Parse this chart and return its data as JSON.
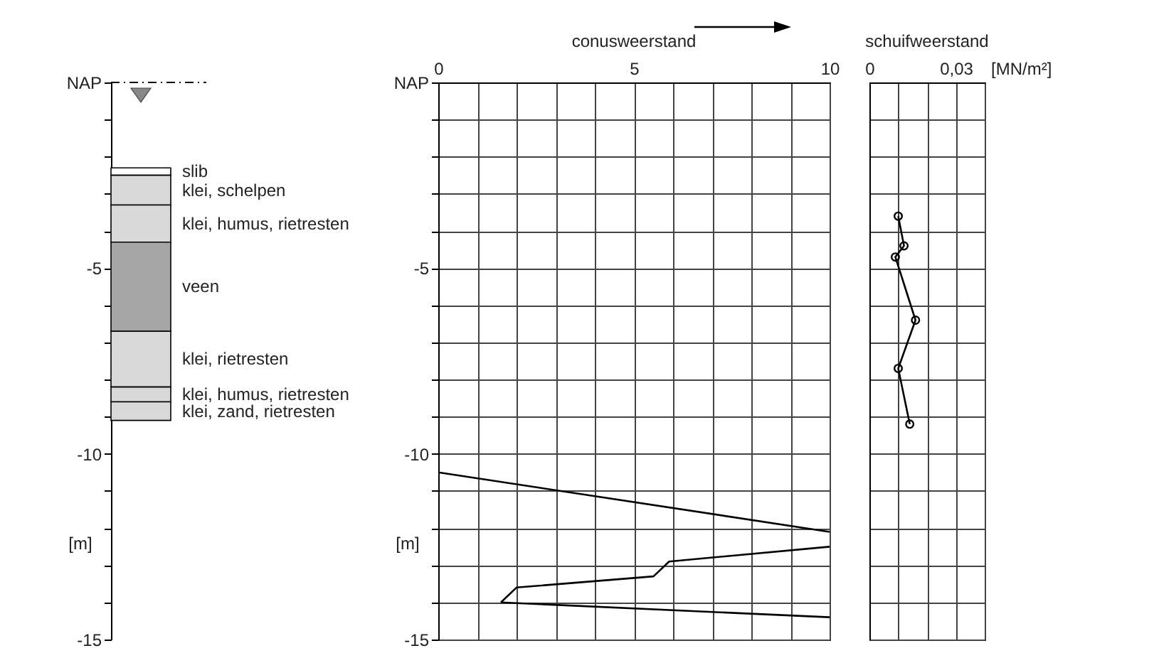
{
  "chart_data": [
    {
      "type": "bar",
      "categories": [
        null
      ],
      "ylim": [
        -15,
        0
      ],
      "ylabel": "[m]",
      "tick_labels": "y",
      "yticks": [
        {
          "value": 0,
          "label": "NAP"
        },
        {
          "value": -1,
          "label": null
        },
        {
          "value": -2,
          "label": null
        },
        {
          "value": -3,
          "label": null
        },
        {
          "value": -4,
          "label": null
        },
        -5,
        {
          "value": -6,
          "label": null
        },
        {
          "value": -7,
          "label": null
        },
        {
          "value": -8,
          "label": null
        },
        {
          "value": -9,
          "label": null
        },
        -10,
        {
          "value": -11,
          "label": null
        },
        {
          "value": -12,
          "label": null
        },
        {
          "value": -13,
          "label": null
        },
        {
          "value": -14,
          "label": null
        },
        -15
      ],
      "series": [
        {
          "name": "slib",
          "color": "#ffffff",
          "base": [
            -2.3
          ],
          "values": [
            -0.2
          ]
        },
        {
          "name": "klei, schelpen",
          "color": "#d9d9d9",
          "base": [
            -2.5
          ],
          "values": [
            -0.8
          ]
        },
        {
          "name": "klei, humus, rietresten",
          "color": "#d9d9d9",
          "base": [
            -3.3
          ],
          "values": [
            -1.0
          ]
        },
        {
          "name": "veen",
          "color": "#a6a6a6",
          "base": [
            -4.3
          ],
          "values": [
            -2.4
          ]
        },
        {
          "name": "klei, rietresten",
          "color": "#d9d9d9",
          "base": [
            -6.7
          ],
          "values": [
            -1.5
          ]
        },
        {
          "name": "klei, humus, rietresten",
          "color": "#d9d9d9",
          "base": [
            -8.2
          ],
          "values": [
            -0.4
          ]
        },
        {
          "name": "klei, zand, rietresten",
          "color": "#d9d9d9",
          "base": [
            -8.6
          ],
          "values": [
            -0.5
          ]
        }
      ],
      "ref_lines": [
        {
          "axis": "y",
          "value": 0,
          "line_style": "dashed"
        }
      ]
    },
    {
      "type": "line",
      "title": "conusweerstand",
      "ylabel": "[m]",
      "grid": true,
      "xlim": [
        0,
        10
      ],
      "xticks": [
        0,
        {
          "value": 1,
          "label": null
        },
        {
          "value": 2,
          "label": null
        },
        {
          "value": 3,
          "label": null
        },
        {
          "value": 4,
          "label": null
        },
        5,
        {
          "value": 6,
          "label": null
        },
        {
          "value": 7,
          "label": null
        },
        {
          "value": 8,
          "label": null
        },
        {
          "value": 9,
          "label": null
        },
        10
      ],
      "ylim": [
        -15,
        0
      ],
      "yticks": [
        {
          "value": 0,
          "label": "NAP"
        },
        {
          "value": -1,
          "label": null
        },
        {
          "value": -2,
          "label": null
        },
        {
          "value": -3,
          "label": null
        },
        {
          "value": -4,
          "label": null
        },
        -5,
        {
          "value": -6,
          "label": null
        },
        {
          "value": -7,
          "label": null
        },
        {
          "value": -8,
          "label": null
        },
        {
          "value": -9,
          "label": null
        },
        -10,
        {
          "value": -11,
          "label": null
        },
        {
          "value": -12,
          "label": null
        },
        {
          "value": -13,
          "label": null
        },
        {
          "value": -14,
          "label": null
        },
        -15
      ],
      "series": [
        {
          "color": "#000000",
          "x": [
            0,
            10
          ],
          "values": [
            -10.5,
            -12.1
          ]
        },
        {
          "color": "#000000",
          "x": [
            1.6,
            2,
            5.5,
            5.9,
            10
          ],
          "values": [
            -14,
            -13.6,
            -13.3,
            -12.9,
            -12.5
          ]
        },
        {
          "color": "#000000",
          "x": [
            1.6,
            10
          ],
          "values": [
            -14,
            -14.4
          ]
        }
      ]
    },
    {
      "type": "line",
      "title": "schuifweerstand",
      "xlabel": "[MN/m²]",
      "grid": true,
      "tick_labels": "x",
      "marker": "circle",
      "xlim": [
        0,
        0.04
      ],
      "xticks": [
        0,
        {
          "value": 0.01,
          "label": null
        },
        {
          "value": 0.02,
          "label": null
        },
        {
          "value": 0.03,
          "label": "0,03"
        },
        {
          "value": 0.04,
          "label": null
        }
      ],
      "ylim": [
        -15,
        0
      ],
      "yticks": [
        {
          "value": 0,
          "label": null
        },
        {
          "value": -1,
          "label": null
        },
        {
          "value": -2,
          "label": null
        },
        {
          "value": -3,
          "label": null
        },
        {
          "value": -4,
          "label": null
        },
        {
          "value": -5,
          "label": null
        },
        {
          "value": -6,
          "label": null
        },
        {
          "value": -7,
          "label": null
        },
        {
          "value": -8,
          "label": null
        },
        {
          "value": -9,
          "label": null
        },
        {
          "value": -10,
          "label": null
        },
        {
          "value": -11,
          "label": null
        },
        {
          "value": -12,
          "label": null
        },
        {
          "value": -13,
          "label": null
        },
        {
          "value": -14,
          "label": null
        },
        {
          "value": -15,
          "label": null
        }
      ],
      "series": [
        {
          "color": "#000000",
          "x": [
            0.01,
            0.012,
            0.009,
            0.016,
            0.01,
            0.014
          ],
          "values": [
            -3.6,
            -4.4,
            -4.7,
            -6.4,
            -7.7,
            -9.2
          ]
        }
      ]
    }
  ]
}
